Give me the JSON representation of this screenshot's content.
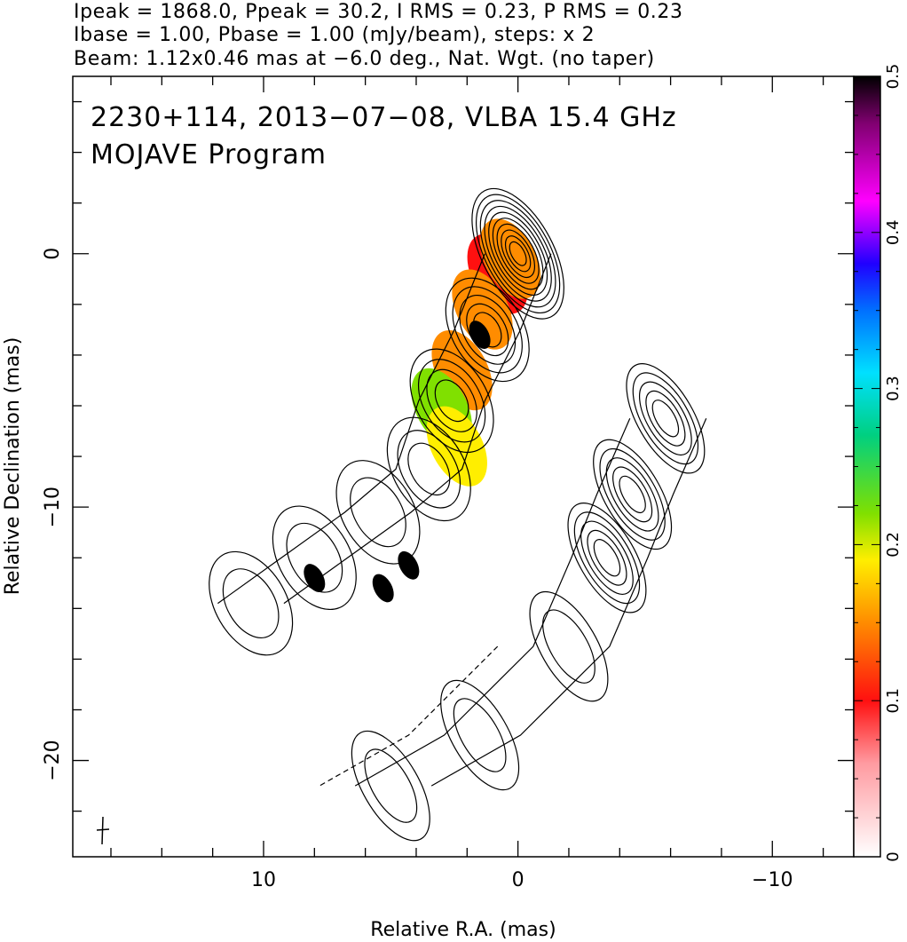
{
  "header": {
    "line1": "Ipeak = 1868.0, Ppeak = 30.2, I RMS = 0.23, P RMS = 0.23",
    "line2": "Ibase = 1.00, Pbase = 1.00 (mJy/beam), steps: x 2",
    "line3": "Beam: 1.12x0.46 mas at −6.0 deg., Nat. Wgt. (no taper)"
  },
  "chart_data": {
    "type": "heatmap",
    "title_line1": "2230+114, 2013−07−08, VLBA 15.4 GHz",
    "title_line2": "MOJAVE Program",
    "xlabel": "Relative R.A. (mas)",
    "ylabel": "Relative Declination (mas)",
    "xlim": [
      17.5,
      -13.2
    ],
    "ylim": [
      -23.8,
      7.0
    ],
    "x_ticks": [
      {
        "value": 10,
        "label": "10"
      },
      {
        "value": 0,
        "label": "0"
      },
      {
        "value": -10,
        "label": "−10"
      }
    ],
    "y_ticks": [
      {
        "value": 0,
        "label": "0"
      },
      {
        "value": -10,
        "label": "−10"
      },
      {
        "value": -20,
        "label": "−20"
      }
    ],
    "colorbar": {
      "range": [
        0,
        0.5
      ],
      "ticks": [
        {
          "value": 0,
          "label": "0"
        },
        {
          "value": 0.1,
          "label": "0.1"
        },
        {
          "value": 0.2,
          "label": "0.2"
        },
        {
          "value": 0.3,
          "label": "0.3"
        },
        {
          "value": 0.4,
          "label": "0.4"
        },
        {
          "value": 0.5,
          "label": "0.5"
        }
      ],
      "stops": [
        {
          "v": 0.0,
          "color": "#ffffff"
        },
        {
          "v": 0.06,
          "color": "#ff9aa0"
        },
        {
          "v": 0.1,
          "color": "#ff1010"
        },
        {
          "v": 0.15,
          "color": "#ff8c00"
        },
        {
          "v": 0.19,
          "color": "#ffee00"
        },
        {
          "v": 0.22,
          "color": "#80e000"
        },
        {
          "v": 0.27,
          "color": "#00d080"
        },
        {
          "v": 0.31,
          "color": "#00e0ff"
        },
        {
          "v": 0.35,
          "color": "#0070ff"
        },
        {
          "v": 0.38,
          "color": "#2000ff"
        },
        {
          "v": 0.42,
          "color": "#ff00ff"
        },
        {
          "v": 0.47,
          "color": "#800070"
        },
        {
          "v": 0.5,
          "color": "#000000"
        }
      ]
    },
    "contour_base_mJy_per_beam": 1.0,
    "contour_step_factor": 2,
    "contour_levels_mJy_per_beam": [
      -1,
      1,
      2,
      4,
      8,
      16,
      32,
      64,
      128,
      256,
      512,
      1024
    ],
    "core_position_mas": [
      0,
      0
    ],
    "main_jet_ridge_mas": [
      {
        "x": 0.0,
        "y": 0.0
      },
      {
        "x": 1.2,
        "y": -3.0
      },
      {
        "x": 2.6,
        "y": -5.8
      },
      {
        "x": 3.5,
        "y": -8.5
      },
      {
        "x": 5.5,
        "y": -10.2
      },
      {
        "x": 8.0,
        "y": -12.0
      },
      {
        "x": 10.5,
        "y": -13.8
      }
    ],
    "southwest_feature_ridge_mas": [
      {
        "x": -5.8,
        "y": -6.5
      },
      {
        "x": -4.5,
        "y": -9.5
      },
      {
        "x": -3.5,
        "y": -12.0
      },
      {
        "x": -2.0,
        "y": -15.5
      },
      {
        "x": 1.5,
        "y": -19.0
      },
      {
        "x": 5.0,
        "y": -21.0
      }
    ],
    "polarized_regions_mJy_per_beam": [
      {
        "x": 0.8,
        "y": -0.8,
        "p": 0.1
      },
      {
        "x": 0.3,
        "y": -0.2,
        "p": 0.11
      },
      {
        "x": 1.4,
        "y": -2.2,
        "p": 0.12
      },
      {
        "x": 2.2,
        "y": -4.6,
        "p": 0.12
      },
      {
        "x": 3.0,
        "y": -6.1,
        "p": 0.21
      },
      {
        "x": 2.4,
        "y": -7.6,
        "p": 0.16
      },
      {
        "x": 1.5,
        "y": -3.2,
        "p": 0.5
      },
      {
        "x": 8.0,
        "y": -12.8,
        "p": 0.5
      },
      {
        "x": 5.3,
        "y": -13.2,
        "p": 0.5
      },
      {
        "x": 4.3,
        "y": -12.3,
        "p": 0.5
      }
    ]
  }
}
